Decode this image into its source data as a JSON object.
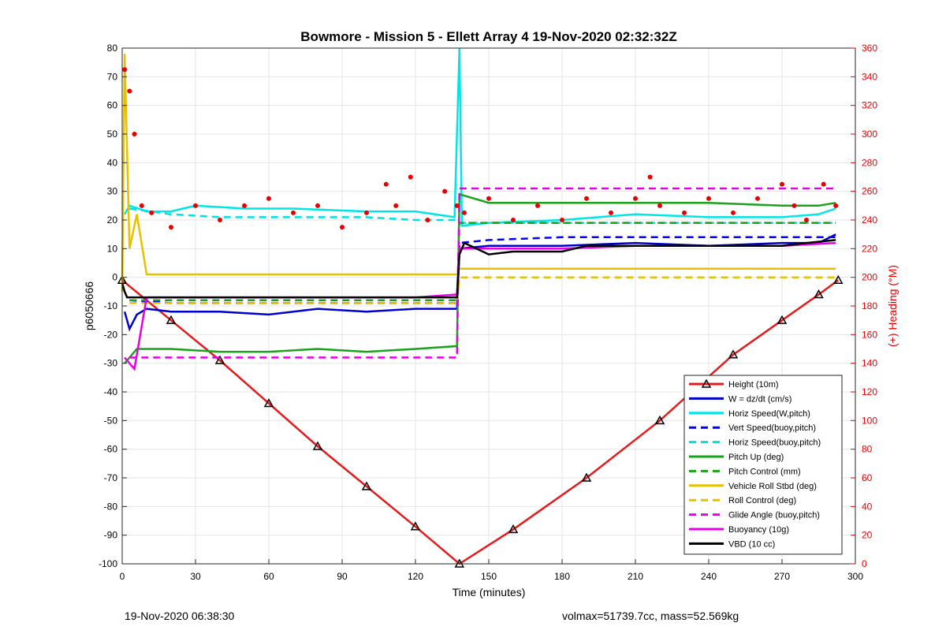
{
  "chart_data": {
    "type": "line",
    "title": "Bowmore - Mission 5 - Ellett Array 4 19-Nov-2020 02:32:32Z",
    "xlabel": "Time (minutes)",
    "ylabel_left": "p6050666",
    "ylabel_right": "(+) Heading (°M)",
    "xlim": [
      0,
      300
    ],
    "ylim_left": [
      -100,
      80
    ],
    "ylim_right": [
      0,
      360
    ],
    "x_ticks": [
      0,
      30,
      60,
      90,
      120,
      150,
      180,
      210,
      240,
      270,
      300
    ],
    "y_ticks_left": [
      -100,
      -90,
      -80,
      -70,
      -60,
      -50,
      -40,
      -30,
      -20,
      -10,
      0,
      10,
      20,
      30,
      40,
      50,
      60,
      70,
      80
    ],
    "y_ticks_right": [
      0,
      20,
      40,
      60,
      80,
      100,
      120,
      140,
      160,
      180,
      200,
      220,
      240,
      260,
      280,
      300,
      320,
      340,
      360
    ],
    "grid": true,
    "legend_position": "bottom-right",
    "series": [
      {
        "name": "Height (10m)",
        "color": "#e41a1c",
        "style": "solid",
        "x": [
          0,
          20,
          40,
          60,
          80,
          100,
          120,
          138,
          160,
          190,
          220,
          250,
          270,
          285,
          293
        ],
        "y": [
          -1,
          -15,
          -29,
          -44,
          -59,
          -73,
          -87,
          -100,
          -88,
          -70,
          -50,
          -27,
          -15,
          -6,
          -1
        ]
      },
      {
        "name": "W = dz/dt (cm/s)",
        "color": "#0000cd",
        "style": "solid",
        "x": [
          1,
          3,
          6,
          10,
          20,
          40,
          60,
          80,
          100,
          120,
          137,
          138,
          150,
          180,
          210,
          240,
          270,
          285,
          292
        ],
        "y": [
          -12,
          -18,
          -13,
          -11,
          -12,
          -12,
          -13,
          -11,
          -12,
          -11,
          -11,
          10,
          11,
          11,
          12,
          11,
          12,
          12,
          15
        ]
      },
      {
        "name": "Horiz Speed(W,pitch)",
        "color": "#00e5e5",
        "style": "solid",
        "x": [
          1,
          3,
          10,
          20,
          30,
          50,
          70,
          100,
          120,
          136,
          138,
          139,
          150,
          180,
          210,
          240,
          270,
          285,
          292
        ],
        "y": [
          22,
          25,
          23,
          23,
          25,
          24,
          24,
          23,
          23,
          21,
          80,
          18,
          19,
          20,
          22,
          21,
          21,
          22,
          24
        ]
      },
      {
        "name": "Vert Speed(buoy,pitch)",
        "color": "#0000ff",
        "style": "dashed",
        "x": [
          3,
          20,
          40,
          60,
          80,
          100,
          120,
          137,
          138,
          150,
          180,
          210,
          240,
          270,
          292
        ],
        "y": [
          -8,
          -9,
          -9,
          -9,
          -9,
          -9,
          -9,
          -9,
          12,
          13,
          14,
          14,
          14,
          14,
          14
        ]
      },
      {
        "name": "Horiz Speed(buoy,pitch)",
        "color": "#00e0e0",
        "style": "dashed",
        "x": [
          3,
          20,
          40,
          60,
          80,
          100,
          120,
          137,
          138,
          150,
          180,
          210,
          240,
          270,
          292
        ],
        "y": [
          24,
          22,
          21,
          21,
          21,
          21,
          20,
          20,
          19,
          19,
          19,
          19,
          19,
          19,
          19
        ]
      },
      {
        "name": "Pitch Up (deg)",
        "color": "#1aa31a",
        "style": "solid",
        "x": [
          1,
          3,
          6,
          10,
          20,
          40,
          60,
          80,
          100,
          120,
          137,
          138,
          150,
          180,
          210,
          240,
          270,
          285,
          292
        ],
        "y": [
          -30,
          -28,
          -25,
          -25,
          -25,
          -26,
          -26,
          -25,
          -26,
          -25,
          -24,
          29,
          26,
          26,
          26,
          26,
          25,
          25,
          26
        ]
      },
      {
        "name": "Pitch Control (mm)",
        "color": "#1aa31a",
        "style": "dashed",
        "x": [
          3,
          20,
          40,
          60,
          80,
          100,
          120,
          137,
          138,
          150,
          180,
          210,
          240,
          270,
          292
        ],
        "y": [
          -8,
          -8,
          -8,
          -8,
          -8,
          -8,
          -8,
          -8,
          19,
          19,
          19,
          19,
          19,
          19,
          19
        ]
      },
      {
        "name": "Vehicle Roll Stbd (deg)",
        "color": "#e6c100",
        "style": "solid",
        "x": [
          0,
          1,
          3,
          6,
          10,
          20,
          40,
          60,
          80,
          100,
          120,
          137,
          138,
          150,
          180,
          210,
          240,
          270,
          285,
          292
        ],
        "y": [
          -5,
          78,
          10,
          22,
          1,
          1,
          1,
          1,
          1,
          1,
          1,
          1,
          3,
          3,
          3,
          3,
          3,
          3,
          3,
          3
        ]
      },
      {
        "name": "Roll Control (deg)",
        "color": "#e6c100",
        "style": "dashed",
        "x": [
          3,
          20,
          40,
          60,
          80,
          100,
          120,
          137,
          138,
          150,
          180,
          210,
          240,
          270,
          292
        ],
        "y": [
          -9,
          -9,
          -9,
          -9,
          -9,
          -9,
          -9,
          -9,
          0,
          0,
          0,
          0,
          0,
          0,
          0
        ]
      },
      {
        "name": "Glide Angle (buoy,pitch)",
        "color": "#e600e6",
        "style": "dashed",
        "x": [
          3,
          20,
          40,
          60,
          80,
          100,
          120,
          137,
          138,
          150,
          180,
          210,
          240,
          270,
          292
        ],
        "y": [
          -28,
          -28,
          -28,
          -28,
          -28,
          -28,
          -28,
          -28,
          31,
          31,
          31,
          31,
          31,
          31,
          31
        ]
      },
      {
        "name": "Buoyancy (10g)",
        "color": "#e600e6",
        "style": "solid",
        "x": [
          1,
          5,
          10,
          40,
          80,
          120,
          137,
          138,
          150,
          180,
          210,
          240,
          270,
          292
        ],
        "y": [
          -28,
          -32,
          -7,
          -7,
          -7,
          -7,
          -6,
          10,
          10,
          10,
          11,
          11,
          11,
          12
        ]
      },
      {
        "name": "VBD (10 cc)",
        "color": "#000000",
        "style": "solid",
        "x": [
          0,
          1,
          2,
          40,
          80,
          120,
          137,
          138,
          140,
          150,
          160,
          180,
          190,
          210,
          240,
          270,
          280,
          292
        ],
        "y": [
          -2,
          -5,
          -7,
          -7,
          -7,
          -7,
          -7,
          8,
          12,
          8,
          9,
          9,
          11,
          11,
          11,
          11,
          12,
          13
        ]
      },
      {
        "name": "Heading",
        "color": "#e60000",
        "style": "dotted",
        "axis": "right",
        "x": [
          1,
          3,
          5,
          8,
          12,
          20,
          30,
          40,
          50,
          60,
          70,
          80,
          90,
          100,
          108,
          112,
          118,
          125,
          132,
          137,
          140,
          150,
          160,
          170,
          180,
          190,
          200,
          210,
          216,
          220,
          230,
          240,
          250,
          260,
          270,
          275,
          280,
          287,
          292
        ],
        "y": [
          345,
          330,
          300,
          250,
          245,
          235,
          250,
          240,
          250,
          255,
          245,
          250,
          235,
          245,
          265,
          250,
          270,
          240,
          260,
          250,
          245,
          255,
          240,
          250,
          240,
          255,
          245,
          255,
          270,
          250,
          245,
          255,
          245,
          255,
          265,
          250,
          240,
          265,
          250
        ]
      }
    ],
    "annotations": {
      "footer_left": "19-Nov-2020 06:38:30",
      "footer_right": "volmax=51739.7cc, mass=52.569kg"
    }
  }
}
